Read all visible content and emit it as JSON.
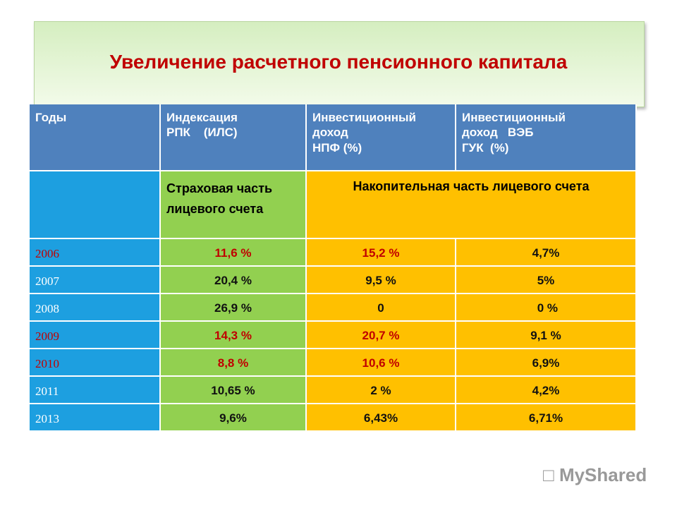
{
  "title": "Увеличение расчетного пенсионного капитала",
  "table": {
    "header": [
      "Годы",
      "Индексация\nРПК    (ИЛС)",
      "Инвестиционный\nдоход\nНПФ (%)",
      "Инвестиционный\nдоход   ВЭБ\nГУК  (%)"
    ],
    "subheader": {
      "insurance": "Страховая часть\nлицевого счета",
      "funded": "Накопительная часть лицевого счета"
    },
    "rows": [
      {
        "year": "2006",
        "values": [
          "11,6 %",
          "15,2 %",
          "4,7%"
        ],
        "highlight": true
      },
      {
        "year": "2007",
        "values": [
          "20,4 %",
          "9,5 %",
          "5%"
        ],
        "highlight": false
      },
      {
        "year": "2008",
        "values": [
          "26,9 %",
          "0",
          " 0 %"
        ],
        "highlight": false
      },
      {
        "year": "2009",
        "values": [
          "14,3 %",
          "20,7 %",
          "9,1 %"
        ],
        "highlight": true
      },
      {
        "year": "2010",
        "values": [
          "8,8 %",
          "10,6 %",
          "6,9%"
        ],
        "highlight": true
      },
      {
        "year": "2011",
        "values": [
          "10,65 %",
          "2 %",
          "4,2%"
        ],
        "highlight": false
      },
      {
        "year": "2013",
        "values": [
          "9,6%",
          "6,43%",
          "6,71%"
        ],
        "highlight": false
      }
    ]
  },
  "watermark": "MyShared"
}
